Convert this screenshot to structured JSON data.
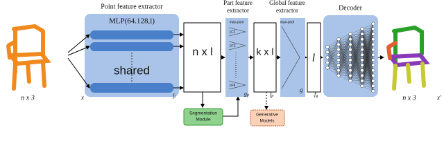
{
  "input": {
    "size": "n x 3",
    "symbol": "x"
  },
  "point_extractor": {
    "title": "Point feature extractor",
    "mlp": "MLP(64.128,l)",
    "shared": "shared",
    "output": {
      "symbol": "f",
      "subscript": "l"
    }
  },
  "point_features": {
    "label": "n x l"
  },
  "segmentation": {
    "label_1": "Segmentation",
    "label_2": "Module"
  },
  "part_extractor": {
    "title_1": "Part feature",
    "title_2": "extractor",
    "pool": "max-pool",
    "parts": [
      "p=1",
      "p=2",
      "p=k"
    ],
    "output": {
      "symbol": "g",
      "subscript": "p"
    }
  },
  "part_features": {
    "label": "k x l",
    "output": {
      "symbol": "f",
      "subscript": "p"
    }
  },
  "generative": {
    "label_1": "Generative",
    "label_2": "Models"
  },
  "global_extractor": {
    "title_1": "Global feature",
    "title_2": "extractor",
    "pool": "max-pool",
    "output": "g"
  },
  "global_features": {
    "label": "l",
    "output": {
      "symbol": "f",
      "subscript": "g"
    }
  },
  "decoder": {
    "title": "Decoder"
  },
  "output": {
    "size": "n x 3",
    "symbol": "x'"
  }
}
